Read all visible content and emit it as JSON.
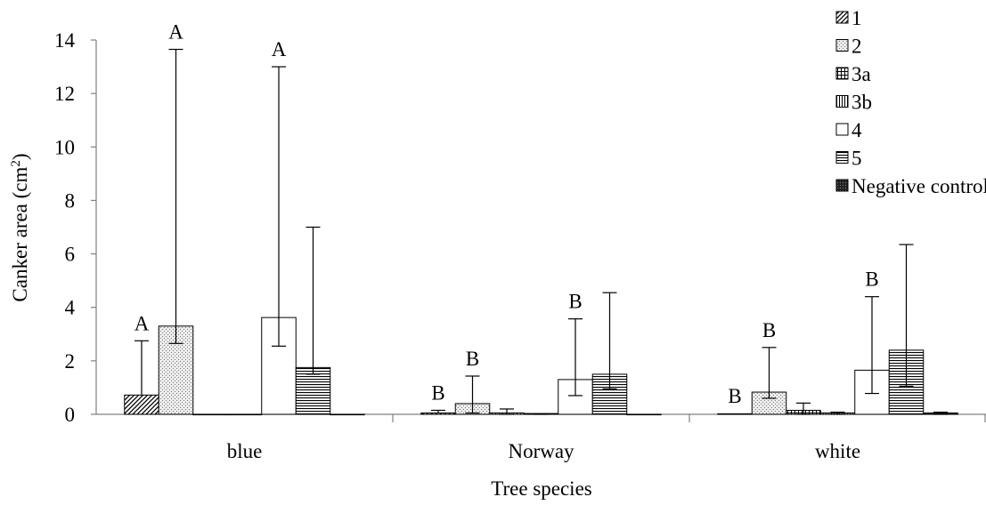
{
  "chart_data": {
    "type": "bar",
    "categories": [
      "blue",
      "Norway",
      "white"
    ],
    "xlabel": "Tree species",
    "ylabel_main": "Canker area (cm",
    "ylabel_sup": "2",
    "ylabel_close": ")",
    "ylim": [
      0,
      14
    ],
    "yticks": [
      0,
      2,
      4,
      6,
      8,
      10,
      12,
      14
    ],
    "grid": false,
    "legend_position": "top-right",
    "series": [
      {
        "name": "1",
        "pattern": "diagonal-hatch",
        "values": [
          0.72,
          0.05,
          0.02
        ],
        "err_high": [
          2.75,
          0.15,
          0.03
        ],
        "err_low": [
          0.72,
          0.05,
          0.02
        ],
        "letters": [
          "A",
          "B",
          "B"
        ]
      },
      {
        "name": "2",
        "pattern": "stipple",
        "values": [
          3.3,
          0.4,
          0.83
        ],
        "err_high": [
          13.65,
          1.43,
          2.5
        ],
        "err_low": [
          2.65,
          0.05,
          0.6
        ],
        "letters": [
          "A",
          "B",
          "B"
        ]
      },
      {
        "name": "3a",
        "pattern": "grid",
        "values": [
          0.0,
          0.05,
          0.15
        ],
        "err_high": [
          0.0,
          0.2,
          0.42
        ],
        "err_low": [
          0.0,
          0.0,
          0.0
        ],
        "letters": [
          "",
          "",
          ""
        ]
      },
      {
        "name": "3b",
        "pattern": "vertical-lines",
        "values": [
          0.0,
          0.03,
          0.05
        ],
        "err_high": [
          0.0,
          0.03,
          0.08
        ],
        "err_low": [
          0.0,
          0.0,
          0.0
        ],
        "letters": [
          "",
          "",
          ""
        ]
      },
      {
        "name": "4",
        "pattern": "white",
        "values": [
          3.62,
          1.3,
          1.65
        ],
        "err_high": [
          13.0,
          3.57,
          4.4
        ],
        "err_low": [
          2.55,
          0.7,
          0.78
        ],
        "letters": [
          "A",
          "B",
          "B"
        ]
      },
      {
        "name": "5",
        "pattern": "horizontal-lines",
        "values": [
          1.75,
          1.5,
          2.4
        ],
        "err_high": [
          7.0,
          4.55,
          6.35
        ],
        "err_low": [
          1.5,
          0.95,
          1.05
        ],
        "letters": [
          "",
          "",
          ""
        ]
      },
      {
        "name": "Negative control",
        "pattern": "dense",
        "values": [
          0.0,
          0.0,
          0.05
        ],
        "err_high": [
          0.0,
          0.0,
          0.08
        ],
        "err_low": [
          0.0,
          0.0,
          0.0
        ],
        "letters": [
          "",
          "",
          ""
        ]
      }
    ]
  }
}
